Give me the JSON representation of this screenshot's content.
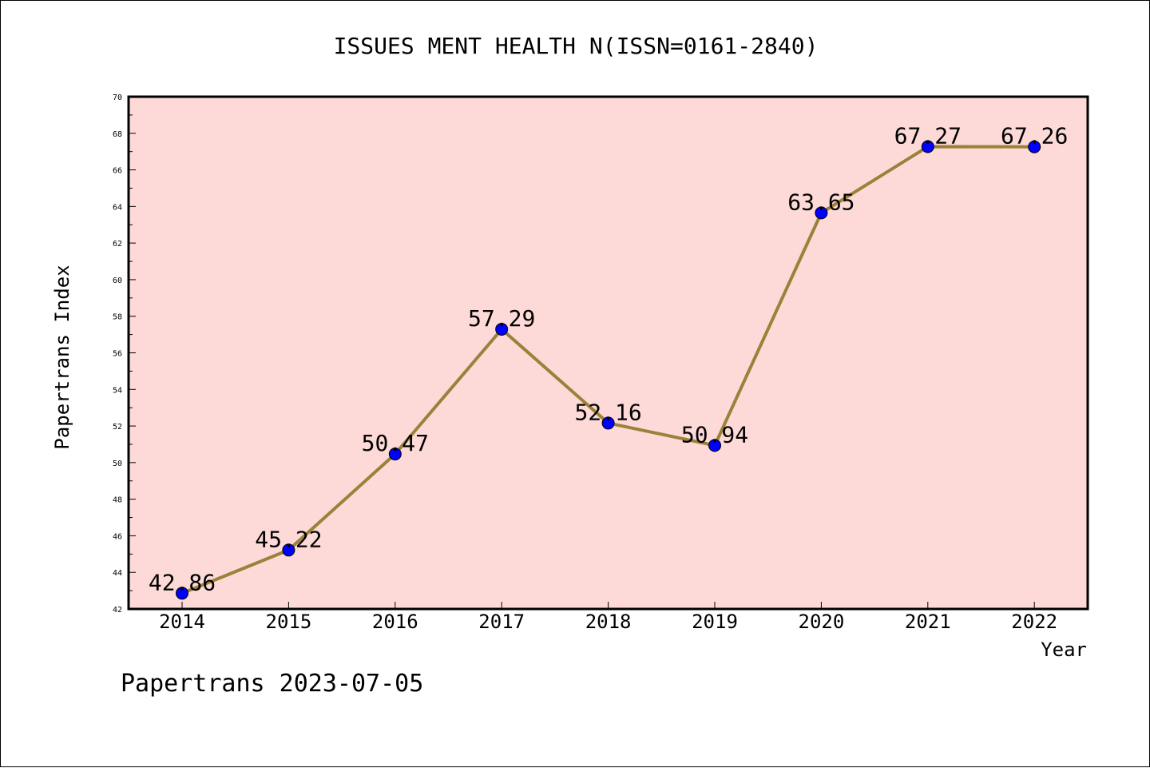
{
  "chart_data": {
    "type": "line",
    "title": "ISSUES MENT HEALTH N(ISSN=0161-2840)",
    "xlabel": "Year",
    "ylabel": "Papertrans Index",
    "footer": "Papertrans 2023-07-05",
    "categories": [
      "2014",
      "2015",
      "2016",
      "2017",
      "2018",
      "2019",
      "2020",
      "2021",
      "2022"
    ],
    "series": [
      {
        "values": [
          42.86,
          45.22,
          50.47,
          57.29,
          52.16,
          50.94,
          63.65,
          67.27,
          67.26
        ]
      }
    ],
    "data_labels": [
      "42.86",
      "45.22",
      "50.47",
      "57.29",
      "52.16",
      "50.94",
      "63.65",
      "67.27",
      "67.26"
    ],
    "ylim": [
      42,
      70
    ],
    "yticks": [
      "42",
      "44",
      "46",
      "48",
      "50",
      "52",
      "54",
      "56",
      "58",
      "60",
      "62",
      "64",
      "66",
      "68",
      "70"
    ],
    "grid": false,
    "colors": {
      "plot_background": "#fddad8",
      "line": "#998239",
      "marker": "#0000ff",
      "axis": "#000000"
    }
  }
}
